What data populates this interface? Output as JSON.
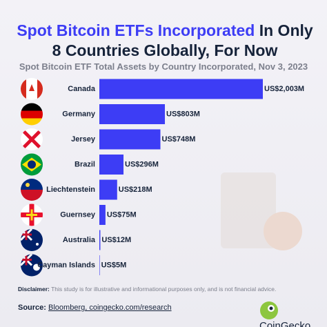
{
  "title_highlight": "Spot Bitcoin ETFs Incorporated",
  "title_rest": "In Only 8 Countries Globally, For Now",
  "chart_data": {
    "type": "bar",
    "orientation": "horizontal",
    "subtitle": "Spot Bitcoin ETF Total Assets by Country Incorporated, Nov 3, 2023",
    "categories": [
      "Canada",
      "Germany",
      "Jersey",
      "Brazil",
      "Liechtenstein",
      "Guernsey",
      "Australia",
      "Cayman Islands"
    ],
    "values": [
      2003,
      803,
      748,
      296,
      218,
      75,
      12,
      5
    ],
    "value_labels": [
      "US$2,003M",
      "US$803M",
      "US$748M",
      "US$296M",
      "US$218M",
      "US$75M",
      "US$12M",
      "US$5M"
    ],
    "color": "#3d3df5"
  },
  "footer": {
    "disclaimer_label": "Disclaimer:",
    "disclaimer": "This study is for illustrative and informational purposes only, and is not financial advice.",
    "source_label": "Source:",
    "source": "Bloomberg, coingecko.com/research",
    "brand": "CoinGecko"
  }
}
